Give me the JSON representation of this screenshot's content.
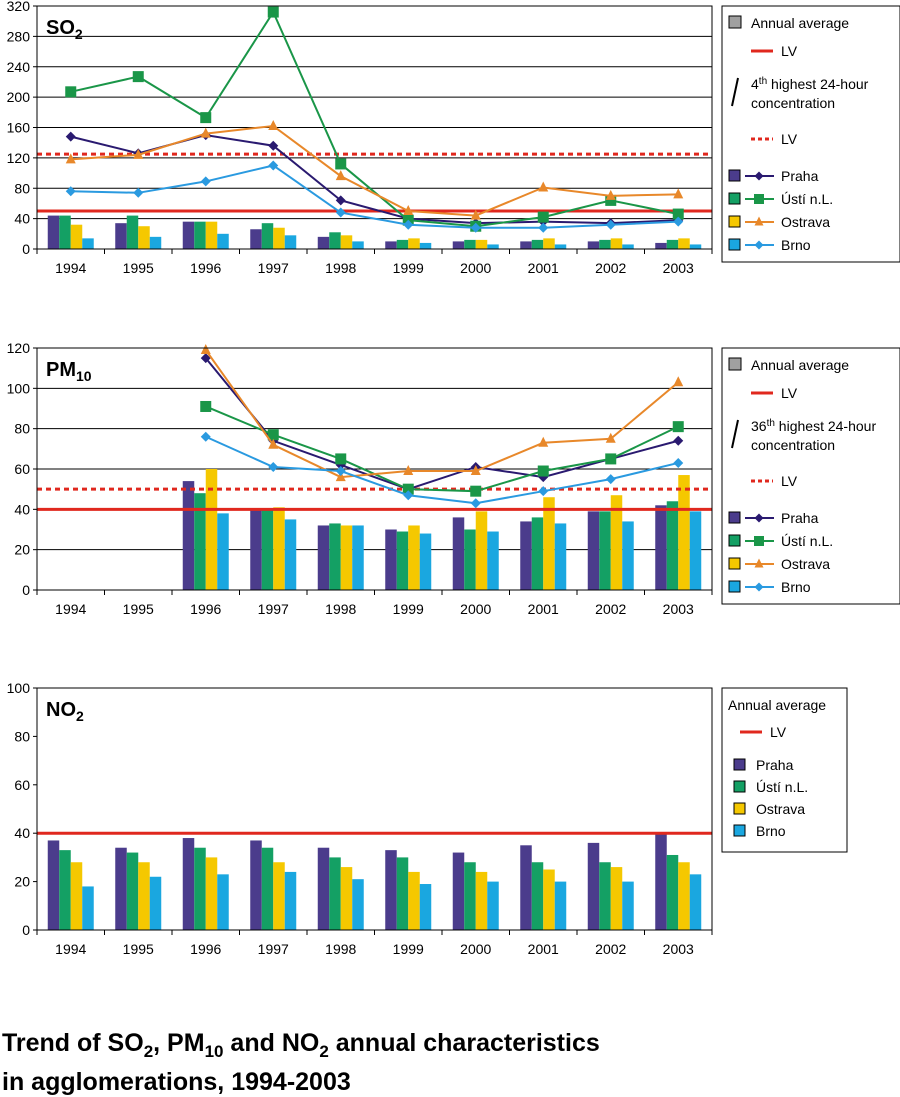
{
  "caption": {
    "line1_prefix": "Trend of SO",
    "sub1": "2",
    "line1_mid1": ", PM",
    "sub2": "10",
    "line1_mid2": " and NO",
    "sub3": "2",
    "line1_suffix": " annual characteristics",
    "line2": "in agglomerations, 1994-2003"
  },
  "colors": {
    "praha": "#4b3c8c",
    "usti": "#14a064",
    "ostrava": "#f5c800",
    "brno": "#1aa7e0",
    "line_praha": "#2a1a70",
    "line_usti": "#1a9648",
    "line_ostrava": "#e8882a",
    "line_brno": "#2a9ae0",
    "lv": "#e0281e"
  },
  "chart_data": [
    {
      "id": "so2",
      "type": "bar",
      "title_main": "SO",
      "title_sub": "2",
      "categories": [
        "1994",
        "1995",
        "1996",
        "1997",
        "1998",
        "1999",
        "2000",
        "2001",
        "2002",
        "2003"
      ],
      "ylim": [
        0,
        320
      ],
      "yticks": [
        "0",
        "40",
        "80",
        "120",
        "160",
        "200",
        "240",
        "280",
        "320"
      ],
      "grid": true,
      "lv": 50,
      "lv_dashed": 125,
      "series": [
        {
          "name": "Praha",
          "values": [
            44,
            34,
            36,
            26,
            16,
            10,
            10,
            10,
            10,
            8
          ]
        },
        {
          "name": "Ústí n.L.",
          "values": [
            44,
            44,
            36,
            34,
            22,
            12,
            12,
            12,
            12,
            12
          ]
        },
        {
          "name": "Ostrava",
          "values": [
            32,
            30,
            36,
            28,
            18,
            14,
            12,
            14,
            14,
            14
          ]
        },
        {
          "name": "Brno",
          "values": [
            14,
            16,
            20,
            18,
            10,
            8,
            6,
            6,
            6,
            6
          ]
        }
      ],
      "lines": [
        {
          "name": "Praha",
          "values": [
            148,
            126,
            150,
            136,
            64,
            40,
            34,
            36,
            34,
            38
          ]
        },
        {
          "name": "Ústí n.L.",
          "values": [
            207,
            227,
            173,
            312,
            112,
            38,
            30,
            42,
            64,
            46
          ]
        },
        {
          "name": "Ostrava",
          "values": [
            118,
            124,
            152,
            162,
            96,
            50,
            44,
            81,
            70,
            72
          ]
        },
        {
          "name": "Brno",
          "values": [
            76,
            74,
            89,
            110,
            48,
            32,
            28,
            28,
            32,
            36
          ]
        }
      ],
      "legend": {
        "annual": "Annual average",
        "lv": "LV",
        "highest_pre": "4",
        "highest_sup": "th",
        "highest_post": " highest 24-hour",
        "highest_line2": "concentration",
        "lv2": "LV",
        "names": [
          "Praha",
          "Ústí n.L.",
          "Ostrava",
          "Brno"
        ]
      }
    },
    {
      "id": "pm10",
      "type": "bar",
      "title_main": "PM",
      "title_sub": "10",
      "categories": [
        "1994",
        "1995",
        "1996",
        "1997",
        "1998",
        "1999",
        "2000",
        "2001",
        "2002",
        "2003"
      ],
      "ylim": [
        0,
        120
      ],
      "yticks": [
        "0",
        "20",
        "40",
        "60",
        "80",
        "100",
        "120"
      ],
      "grid": true,
      "lv": 40,
      "lv_dashed": 50,
      "series": [
        {
          "name": "Praha",
          "values": [
            null,
            null,
            54,
            40,
            32,
            30,
            36,
            34,
            39,
            42
          ]
        },
        {
          "name": "Ústí n.L.",
          "values": [
            null,
            null,
            48,
            40,
            33,
            29,
            30,
            36,
            39,
            44
          ]
        },
        {
          "name": "Ostrava",
          "values": [
            null,
            null,
            60,
            41,
            32,
            32,
            39,
            46,
            47,
            57
          ]
        },
        {
          "name": "Brno",
          "values": [
            null,
            null,
            38,
            35,
            32,
            28,
            29,
            33,
            34,
            39
          ]
        }
      ],
      "lines": [
        {
          "name": "Praha",
          "values": [
            null,
            null,
            115,
            74,
            62,
            50,
            61,
            56,
            65,
            74
          ]
        },
        {
          "name": "Ústí n.L.",
          "values": [
            null,
            null,
            91,
            77,
            65,
            50,
            49,
            59,
            65,
            81
          ]
        },
        {
          "name": "Ostrava",
          "values": [
            null,
            null,
            119,
            72,
            56,
            59,
            59,
            73,
            75,
            103
          ]
        },
        {
          "name": "Brno",
          "values": [
            null,
            null,
            76,
            61,
            59,
            47,
            43,
            49,
            55,
            63
          ]
        }
      ],
      "legend": {
        "annual": "Annual average",
        "lv": "LV",
        "highest_pre": "36",
        "highest_sup": "th",
        "highest_post": " highest 24-hour",
        "highest_line2": "concentration",
        "lv2": "LV",
        "names": [
          "Praha",
          "Ústí n.L.",
          "Ostrava",
          "Brno"
        ]
      }
    },
    {
      "id": "no2",
      "type": "bar",
      "title_main": "NO",
      "title_sub": "2",
      "categories": [
        "1994",
        "1995",
        "1996",
        "1997",
        "1998",
        "1999",
        "2000",
        "2001",
        "2002",
        "2003"
      ],
      "ylim": [
        0,
        100
      ],
      "yticks": [
        "0",
        "20",
        "40",
        "60",
        "80",
        "100"
      ],
      "grid": false,
      "lv": 40,
      "series": [
        {
          "name": "Praha",
          "values": [
            37,
            34,
            38,
            37,
            34,
            33,
            32,
            35,
            36,
            40
          ]
        },
        {
          "name": "Ústí n.L.",
          "values": [
            33,
            32,
            34,
            34,
            30,
            30,
            28,
            28,
            28,
            31
          ]
        },
        {
          "name": "Ostrava",
          "values": [
            28,
            28,
            30,
            28,
            26,
            24,
            24,
            25,
            26,
            28
          ]
        },
        {
          "name": "Brno",
          "values": [
            18,
            22,
            23,
            24,
            21,
            19,
            20,
            20,
            20,
            23
          ]
        }
      ],
      "legend": {
        "annual": "Annual average",
        "lv": "LV",
        "names": [
          "Praha",
          "Ústí n.L.",
          "Ostrava",
          "Brno"
        ]
      }
    }
  ]
}
